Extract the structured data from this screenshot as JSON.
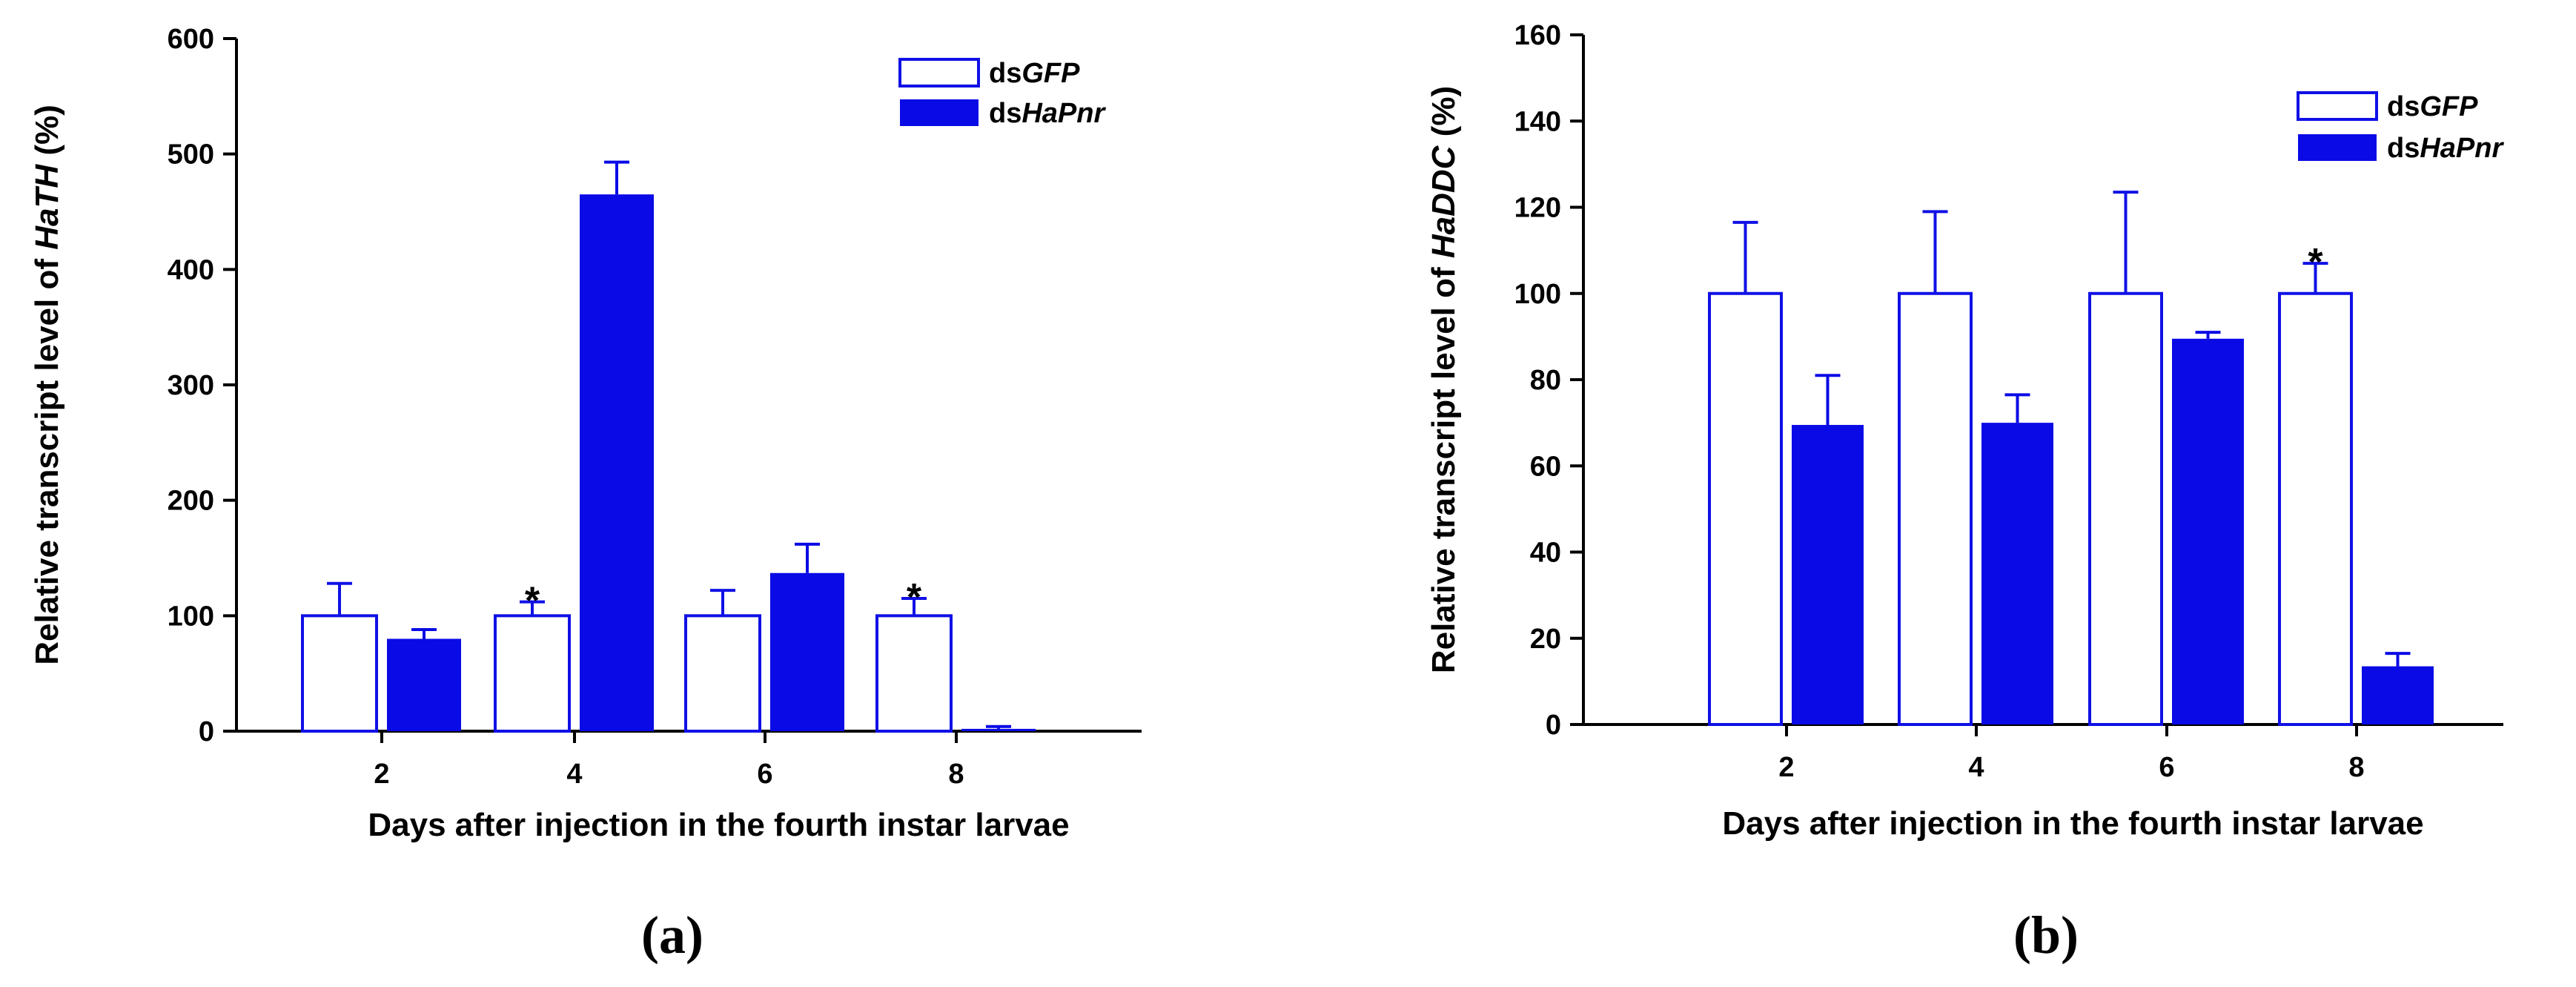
{
  "colors": {
    "series_open_stroke": "#1010e6",
    "series_filled": "#0a0ae6",
    "axis": "#000000"
  },
  "chart_data": [
    {
      "panel_label": "(a)",
      "type": "bar",
      "title": "",
      "xlabel": "Days after injection in the fourth instar larvae",
      "ylabel_prefix": "Relative transcript level of ",
      "ylabel_gene": "HaTH",
      "ylabel_suffix": " (%)",
      "categories": [
        "2",
        "4",
        "6",
        "8"
      ],
      "ylim": [
        0,
        600
      ],
      "yticks": [
        0,
        100,
        200,
        300,
        400,
        500,
        600
      ],
      "legend_position": "top-right",
      "series": [
        {
          "name_prefix": "ds",
          "name_italic": "GFP",
          "style": "open",
          "values": [
            100,
            100,
            100,
            100
          ],
          "errors": [
            28,
            12,
            22,
            15
          ]
        },
        {
          "name_prefix": "ds",
          "name_italic": "HaPnr",
          "style": "filled",
          "values": [
            80,
            465,
            137,
            2
          ],
          "errors": [
            8,
            28,
            25,
            2
          ]
        }
      ],
      "annotations": [
        {
          "text": "*",
          "category": "4",
          "series": 0
        },
        {
          "text": "*",
          "category": "8",
          "series": 0
        }
      ]
    },
    {
      "panel_label": "(b)",
      "type": "bar",
      "title": "",
      "xlabel": "Days after injection in the fourth instar larvae",
      "ylabel_prefix": "Relative transcript level of ",
      "ylabel_gene": "HaDDC",
      "ylabel_suffix": " (%)",
      "categories": [
        "2",
        "4",
        "6",
        "8"
      ],
      "ylim": [
        0,
        160
      ],
      "yticks": [
        0,
        20,
        40,
        60,
        80,
        100,
        120,
        140,
        160
      ],
      "legend_position": "top-right",
      "series": [
        {
          "name_prefix": "ds",
          "name_italic": "GFP",
          "style": "open",
          "values": [
            100,
            100,
            100,
            100
          ],
          "errors": [
            16.5,
            19,
            23.5,
            7
          ]
        },
        {
          "name_prefix": "ds",
          "name_italic": "HaPnr",
          "style": "filled",
          "values": [
            69.5,
            70,
            89.5,
            13.5
          ],
          "errors": [
            11.5,
            6.5,
            1.5,
            3
          ]
        }
      ],
      "annotations": [
        {
          "text": "*",
          "category": "8",
          "series": 0
        }
      ]
    }
  ]
}
